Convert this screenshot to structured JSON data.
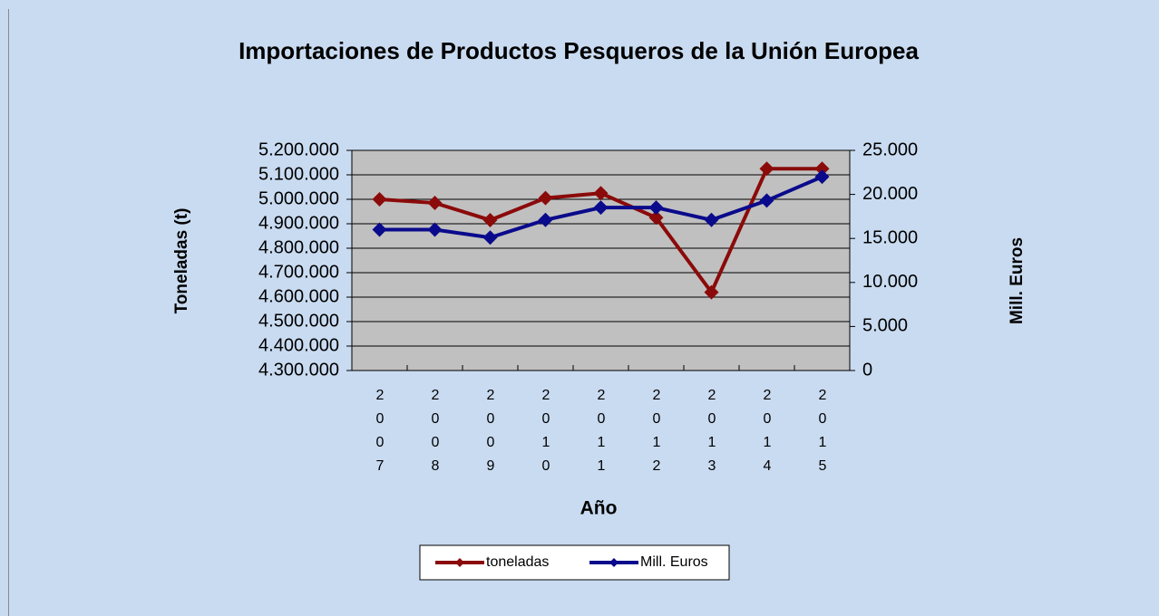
{
  "chart_data": {
    "type": "line",
    "title": "Importaciones de Productos Pesqueros de la Unión Europea",
    "xlabel": "Año",
    "ylabel": "Toneladas (t)",
    "y2label": "Mill. Euros",
    "categories": [
      "2007",
      "2008",
      "2009",
      "2010",
      "2011",
      "2012",
      "2013",
      "2014",
      "2015"
    ],
    "series": [
      {
        "name": "toneladas",
        "color": "#8b0a0a",
        "values": [
          5000000,
          4985000,
          4915000,
          5005000,
          5025000,
          4925000,
          4620000,
          5125000,
          5125000
        ]
      },
      {
        "name": "Mill. Euros",
        "color": "#0a0a8c",
        "axis": "y2",
        "values": [
          16000,
          16000,
          15100,
          17100,
          18500,
          18500,
          17100,
          19300,
          22000
        ]
      }
    ],
    "ylim": [
      4300000,
      5200000
    ],
    "yticks": [
      {
        "value": 4300000,
        "label": "4.300.000"
      },
      {
        "value": 4400000,
        "label": "4.400.000"
      },
      {
        "value": 4500000,
        "label": "4.500.000"
      },
      {
        "value": 4600000,
        "label": "4.600.000"
      },
      {
        "value": 4700000,
        "label": "4.700.000"
      },
      {
        "value": 4800000,
        "label": "4.800.000"
      },
      {
        "value": 4900000,
        "label": "4.900.000"
      },
      {
        "value": 5000000,
        "label": "5.000.000"
      },
      {
        "value": 5100000,
        "label": "5.100.000"
      },
      {
        "value": 5200000,
        "label": "5.200.000"
      }
    ],
    "y2lim": [
      0,
      25000
    ],
    "y2ticks": [
      0,
      {
        "value": 5000,
        "label": "5.000"
      },
      {
        "value": 10000,
        "label": "10.000"
      },
      {
        "value": 15000,
        "label": "15.000"
      },
      {
        "value": 20000,
        "label": "20.000"
      },
      {
        "value": 25000,
        "label": "25.000"
      }
    ],
    "grid": true,
    "legend": "bottom"
  }
}
